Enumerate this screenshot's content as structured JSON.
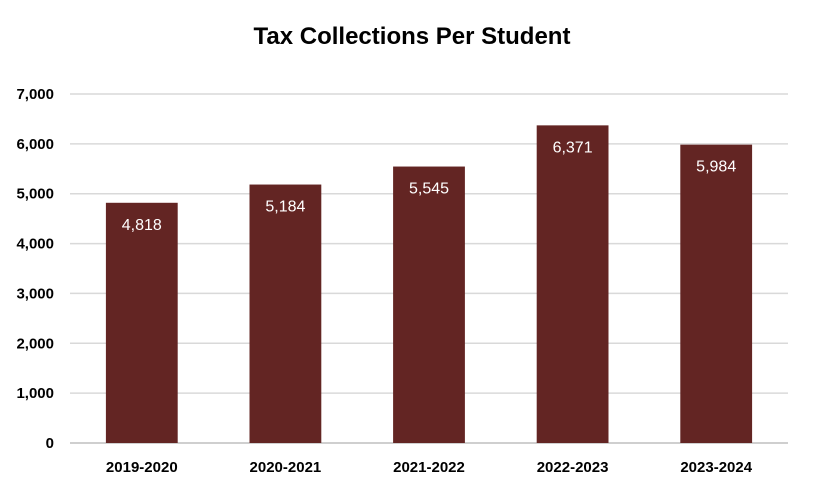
{
  "chart_data": {
    "type": "bar",
    "title": "Tax Collections Per Student",
    "categories": [
      "2019-2020",
      "2020-2021",
      "2021-2022",
      "2022-2023",
      "2023-2024"
    ],
    "values": [
      4818,
      5184,
      5545,
      6371,
      5984
    ],
    "value_labels": [
      "4,818",
      "5,184",
      "5,545",
      "6,371",
      "5,984"
    ],
    "ylim": [
      0,
      7000
    ],
    "yticks": [
      0,
      1000,
      2000,
      3000,
      4000,
      5000,
      6000,
      7000
    ],
    "ytick_labels": [
      "0",
      "1,000",
      "2,000",
      "3,000",
      "4,000",
      "5,000",
      "6,000",
      "7,000"
    ],
    "grid": true,
    "legend": "none",
    "colors": {
      "bar": "#632523",
      "data_label": "#ffffff",
      "grid": "#d9d9d9"
    }
  }
}
